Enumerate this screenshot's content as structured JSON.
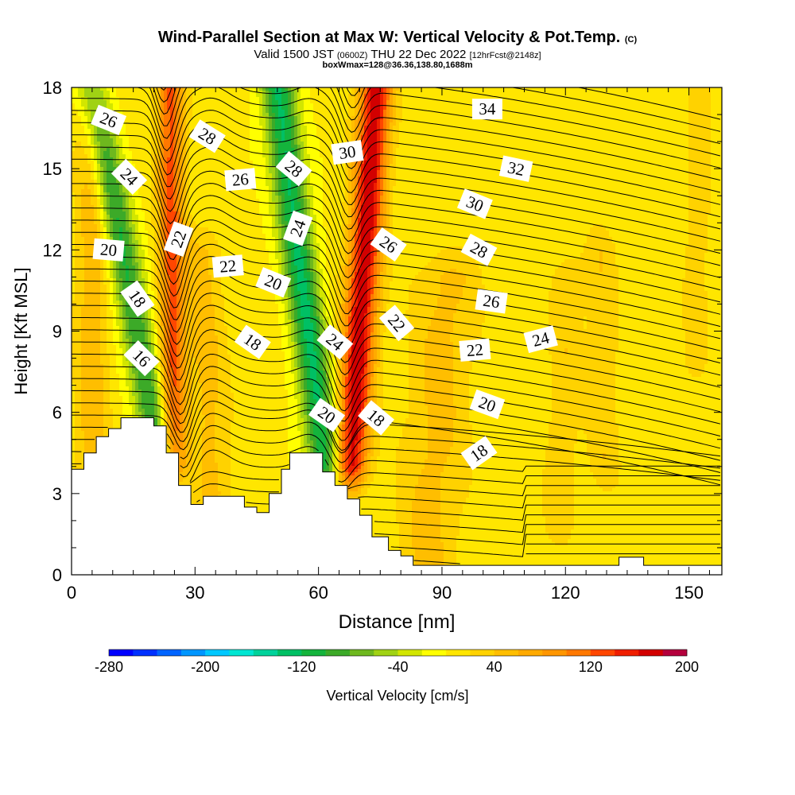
{
  "header": {
    "title_main": "Wind-Parallel Section at Max W: Vertical Velocity & Pot.Temp.",
    "title_c": "(C)",
    "valid_a": "Valid 1500 JST",
    "valid_b": "(0600Z)",
    "valid_c": "THU 22 Dec 2022",
    "valid_d": "[12hrFcst@2148z]",
    "box": "boxWmax=128@36.36,138.80,1688m"
  },
  "colors": {
    "scale": [
      "#0000ff",
      "#0030ff",
      "#0064ff",
      "#0096ff",
      "#00c8ff",
      "#00e6d2",
      "#00d29b",
      "#00c064",
      "#14b43c",
      "#3caa28",
      "#6eb81e",
      "#a0d214",
      "#d2e600",
      "#ffff00",
      "#ffe600",
      "#ffd200",
      "#ffbe00",
      "#ffaa00",
      "#ff9600",
      "#ff7800",
      "#ff4600",
      "#f01e00",
      "#d20000",
      "#b4003c",
      "#960064",
      "#640096"
    ],
    "contour": "#000000",
    "terrain": "#ffffff"
  },
  "chart_data": {
    "type": "heatmap",
    "xlabel": "Distance [nm]",
    "ylabel": "Height [Kft MSL]",
    "xlim": [
      0,
      158
    ],
    "ylim": [
      0,
      18
    ],
    "xticks": [
      0,
      30,
      60,
      90,
      120,
      150
    ],
    "yticks": [
      0,
      3,
      6,
      9,
      12,
      15,
      18
    ],
    "colorbar": {
      "label": "Vertical Velocity [cm/s]",
      "min": -280,
      "max": 200,
      "step": 20,
      "tick_labels": [
        "-280",
        "-200",
        "-120",
        "-40",
        "40",
        "120",
        "200"
      ]
    },
    "terrain_profile": [
      [
        0,
        3.9
      ],
      [
        3,
        3.9
      ],
      [
        3,
        4.5
      ],
      [
        6,
        4.5
      ],
      [
        6,
        5.1
      ],
      [
        9,
        5.1
      ],
      [
        9,
        5.4
      ],
      [
        12,
        5.4
      ],
      [
        12,
        5.8
      ],
      [
        20,
        5.8
      ],
      [
        20,
        5.5
      ],
      [
        23,
        5.5
      ],
      [
        23,
        4.5
      ],
      [
        26,
        4.5
      ],
      [
        26,
        3.3
      ],
      [
        29,
        3.3
      ],
      [
        29,
        2.6
      ],
      [
        32,
        2.6
      ],
      [
        32,
        2.9
      ],
      [
        42,
        2.9
      ],
      [
        42,
        2.5
      ],
      [
        45,
        2.5
      ],
      [
        45,
        2.3
      ],
      [
        48,
        2.3
      ],
      [
        48,
        3.0
      ],
      [
        51,
        3.0
      ],
      [
        51,
        3.9
      ],
      [
        53,
        3.9
      ],
      [
        53,
        4.5
      ],
      [
        61,
        4.5
      ],
      [
        61,
        3.8
      ],
      [
        64,
        3.8
      ],
      [
        64,
        3.3
      ],
      [
        67,
        3.3
      ],
      [
        67,
        2.8
      ],
      [
        70,
        2.8
      ],
      [
        70,
        2.2
      ],
      [
        73,
        2.2
      ],
      [
        73,
        1.4
      ],
      [
        77,
        1.4
      ],
      [
        77,
        0.9
      ],
      [
        80,
        0.9
      ],
      [
        80,
        0.7
      ],
      [
        83,
        0.7
      ],
      [
        83,
        0.35
      ],
      [
        133,
        0.35
      ],
      [
        133,
        0.65
      ],
      [
        139,
        0.65
      ],
      [
        139,
        0.35
      ],
      [
        158,
        0.35
      ]
    ],
    "vertical_velocity_bands": [
      {
        "x_at_0": 5,
        "x_at_18": 5,
        "half_width": 4,
        "z_min": 0,
        "z_max": 18,
        "value": 50
      },
      {
        "x_at_0": 27,
        "x_at_18": 5,
        "half_width": 4,
        "z_min": 4,
        "z_max": 18,
        "value": -110
      },
      {
        "x_at_0": 25,
        "x_at_18": 24,
        "half_width": 3.2,
        "z_min": 4,
        "z_max": 18,
        "value": 120
      },
      {
        "x_at_0": 35,
        "x_at_18": 30,
        "half_width": 5,
        "z_min": 3,
        "z_max": 12,
        "value": 40
      },
      {
        "x_at_0": 65,
        "x_at_18": 50,
        "half_width": 4.2,
        "z_min": 4,
        "z_max": 18,
        "value": -130
      },
      {
        "x_at_0": 66,
        "x_at_18": 74,
        "half_width": 4,
        "z_min": 4,
        "z_max": 18,
        "value": 170
      },
      {
        "x_at_0": 86,
        "x_at_18": 95,
        "half_width": 8,
        "z_min": 0,
        "z_max": 11,
        "value": 40
      },
      {
        "x_at_0": 118,
        "x_at_18": 122,
        "half_width": 4,
        "z_min": 2,
        "z_max": 11,
        "value": 30
      },
      {
        "x_at_0": 130,
        "x_at_18": 128,
        "half_width": 4,
        "z_min": 4,
        "z_max": 12,
        "value": 30
      },
      {
        "x_at_0": 150,
        "x_at_18": 153,
        "half_width": 3,
        "z_min": 8,
        "z_max": 18,
        "value": 30
      }
    ],
    "theta_contour_labels": [
      {
        "value": "34",
        "x": 101,
        "z": 17.2,
        "angle": 0
      },
      {
        "value": "32",
        "x": 108,
        "z": 15.0,
        "angle": 12
      },
      {
        "value": "30",
        "x": 98,
        "z": 13.7,
        "angle": 22
      },
      {
        "value": "30",
        "x": 67,
        "z": 15.6,
        "angle": -8
      },
      {
        "value": "28",
        "x": 33,
        "z": 16.2,
        "angle": 32
      },
      {
        "value": "28",
        "x": 54,
        "z": 15.0,
        "angle": 40
      },
      {
        "value": "28",
        "x": 99,
        "z": 12.0,
        "angle": 28
      },
      {
        "value": "26",
        "x": 9,
        "z": 16.8,
        "angle": 22
      },
      {
        "value": "26",
        "x": 41,
        "z": 14.6,
        "angle": -5
      },
      {
        "value": "26",
        "x": 77,
        "z": 12.2,
        "angle": 35
      },
      {
        "value": "26",
        "x": 102,
        "z": 10.1,
        "angle": 8
      },
      {
        "value": "24",
        "x": 14,
        "z": 14.7,
        "angle": 45
      },
      {
        "value": "24",
        "x": 55,
        "z": 12.8,
        "angle": -70
      },
      {
        "value": "24",
        "x": 64,
        "z": 8.6,
        "angle": 40
      },
      {
        "value": "24",
        "x": 114,
        "z": 8.7,
        "angle": -15
      },
      {
        "value": "22",
        "x": 26,
        "z": 12.4,
        "angle": -70
      },
      {
        "value": "22",
        "x": 38,
        "z": 11.4,
        "angle": -5
      },
      {
        "value": "22",
        "x": 79,
        "z": 9.3,
        "angle": 50
      },
      {
        "value": "22",
        "x": 98,
        "z": 8.3,
        "angle": -5
      },
      {
        "value": "20",
        "x": 9,
        "z": 12.0,
        "angle": 5
      },
      {
        "value": "20",
        "x": 49,
        "z": 10.8,
        "angle": 22
      },
      {
        "value": "20",
        "x": 62,
        "z": 5.9,
        "angle": 35
      },
      {
        "value": "20",
        "x": 101,
        "z": 6.3,
        "angle": 20
      },
      {
        "value": "18",
        "x": 16,
        "z": 10.2,
        "angle": 55
      },
      {
        "value": "18",
        "x": 44,
        "z": 8.6,
        "angle": 35
      },
      {
        "value": "18",
        "x": 74,
        "z": 5.8,
        "angle": 40
      },
      {
        "value": "18",
        "x": 99,
        "z": 4.5,
        "angle": -35
      },
      {
        "value": "16",
        "x": 17,
        "z": 8.0,
        "angle": 45
      }
    ]
  }
}
